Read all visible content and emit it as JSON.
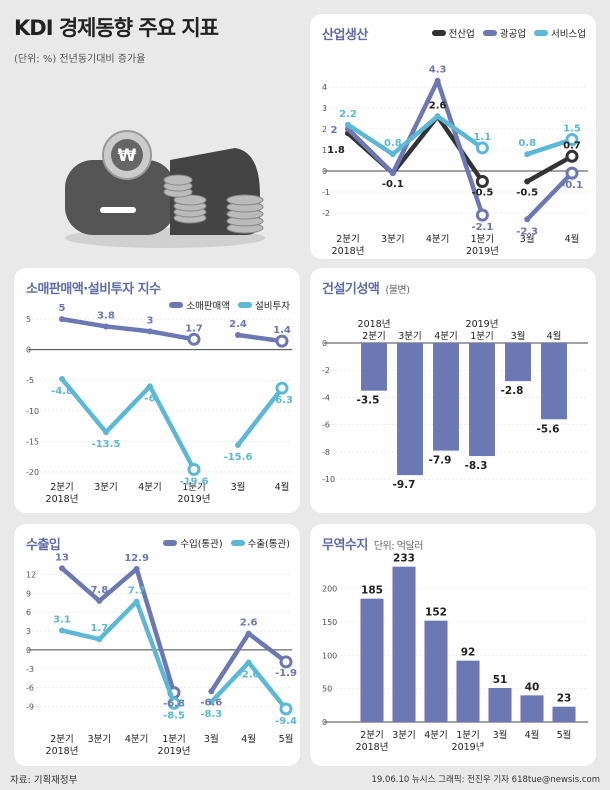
{
  "header": {
    "title": "KDI 경제동향 주요 지표",
    "subtitle": "(단위: %) 전년동기대비 증가율"
  },
  "footer": {
    "source": "자료: 기획재정부",
    "credit": "19.06.10 뉴시스 그래픽: 전진우 기자 618tue@newsis.com",
    "watermark": "NEWSIS"
  },
  "colors": {
    "dark": "#333333",
    "purple": "#6b78b4",
    "cyan": "#5bb8d6",
    "bar": "#6b78b4"
  },
  "chart_data": [
    {
      "id": "industry",
      "type": "line",
      "title": "산업생산",
      "categories": [
        "2분기",
        "3분기",
        "4분기",
        "1분기",
        "3월",
        "4월"
      ],
      "year_labels": [
        {
          "text": "2018년",
          "index": 0
        },
        {
          "text": "2019년",
          "index": 3
        }
      ],
      "ylim": [
        -3,
        5
      ],
      "yticks": [
        -2,
        -1,
        0,
        1,
        2,
        3,
        4
      ],
      "series": [
        {
          "name": "전산업",
          "color": "#333333",
          "values": [
            1.8,
            -0.1,
            2.6,
            -0.5,
            -0.5,
            0.7
          ]
        },
        {
          "name": "광공업",
          "color": "#6b78b4",
          "values": [
            2.0,
            -0.1,
            4.3,
            -2.1,
            -2.3,
            -0.1
          ]
        },
        {
          "name": "서비스업",
          "color": "#5bb8d6",
          "values": [
            2.2,
            0.8,
            2.6,
            1.1,
            0.8,
            1.5
          ]
        }
      ],
      "data_labels": [
        {
          "series": 0,
          "values": [
            "1.8",
            "-0.1",
            "2.6",
            "-0.5",
            "-0.5",
            "0.7"
          ]
        },
        {
          "series": 1,
          "values": [
            "2",
            "",
            "4.3",
            "-2.1",
            "-2.3",
            "-0.1"
          ]
        },
        {
          "series": 2,
          "values": [
            "2.2",
            "0.8",
            "",
            "1.1",
            "0.8",
            "1.5"
          ]
        }
      ]
    },
    {
      "id": "retail",
      "type": "line",
      "title": "소매판매액·설비투자 지수",
      "categories": [
        "2분기",
        "3분기",
        "4분기",
        "1분기",
        "3월",
        "4월"
      ],
      "year_labels": [
        {
          "text": "2018년",
          "index": 0
        },
        {
          "text": "2019년",
          "index": 3
        }
      ],
      "ylim": [
        -21,
        6
      ],
      "yticks": [
        -20,
        -15,
        -10,
        -5,
        0,
        5
      ],
      "series": [
        {
          "name": "소매판매액",
          "color": "#6b78b4",
          "values": [
            5.0,
            3.8,
            3.0,
            1.7,
            2.4,
            1.4
          ]
        },
        {
          "name": "설비투자",
          "color": "#5bb8d6",
          "values": [
            -4.8,
            -13.5,
            -6.0,
            -19.6,
            -15.6,
            -6.3
          ]
        }
      ],
      "data_labels": [
        {
          "series": 0,
          "values": [
            "5",
            "3.8",
            "3",
            "1.7",
            "2.4",
            "1.4"
          ]
        },
        {
          "series": 1,
          "values": [
            "-4.8",
            "-13.5",
            "-6",
            "-19.6",
            "-15.6",
            "-6.3"
          ]
        }
      ]
    },
    {
      "id": "construction",
      "type": "bar",
      "title": "건설기성액",
      "unit": "(불변)",
      "categories": [
        "2분기",
        "3분기",
        "4분기",
        "1분기",
        "3월",
        "4월"
      ],
      "year_labels": [
        {
          "text": "2018년",
          "index": 0
        },
        {
          "text": "2019년",
          "index": 3
        }
      ],
      "ylim": [
        -10.5,
        0
      ],
      "yticks": [
        -10,
        -8,
        -6,
        -4,
        -2
      ],
      "values": [
        -3.5,
        -9.7,
        -7.9,
        -8.3,
        -2.8,
        -5.6
      ],
      "value_labels": [
        "-3.5",
        "-9.7",
        "-7.9",
        "-8.3",
        "-2.8",
        "-5.6"
      ]
    },
    {
      "id": "trade",
      "type": "line",
      "title": "수출입",
      "categories": [
        "2분기",
        "3분기",
        "4분기",
        "1분기",
        "3월",
        "4월",
        "5월"
      ],
      "year_labels": [
        {
          "text": "2018년",
          "index": 0
        },
        {
          "text": "2019년",
          "index": 3
        }
      ],
      "ylim": [
        -11,
        14
      ],
      "yticks": [
        -9,
        -6,
        -3,
        0,
        3,
        6,
        9,
        12
      ],
      "series": [
        {
          "name": "수입(통관)",
          "color": "#6b78b4",
          "values": [
            13.0,
            7.8,
            12.9,
            -6.8,
            -6.6,
            2.6,
            -1.9
          ]
        },
        {
          "name": "수출(통관)",
          "color": "#5bb8d6",
          "values": [
            3.1,
            1.7,
            7.7,
            -8.5,
            -8.3,
            -2.0,
            -9.4
          ]
        }
      ],
      "data_labels": [
        {
          "series": 0,
          "values": [
            "13",
            "7.8",
            "12.9",
            "-6.8",
            "-6.6",
            "2.6",
            "-1.9"
          ]
        },
        {
          "series": 1,
          "values": [
            "3.1",
            "1.7",
            "7.7",
            "-8.5",
            "-8.3",
            "-2.0",
            "-9.4"
          ]
        }
      ]
    },
    {
      "id": "balance",
      "type": "bar",
      "title": "무역수지",
      "unit": "단위: 억달러",
      "categories": [
        "2분기",
        "3분기",
        "4분기",
        "1분기",
        "3월",
        "4월",
        "5월"
      ],
      "year_labels": [
        {
          "text": "2018년",
          "index": 0
        },
        {
          "text": "2019년",
          "index": 3
        }
      ],
      "ylim": [
        0,
        240
      ],
      "yticks": [
        50,
        100,
        150,
        200
      ],
      "values": [
        185,
        233,
        152,
        92,
        51,
        40,
        23
      ],
      "value_labels": [
        "185",
        "233",
        "152",
        "92",
        "51",
        "40",
        "23"
      ]
    }
  ]
}
